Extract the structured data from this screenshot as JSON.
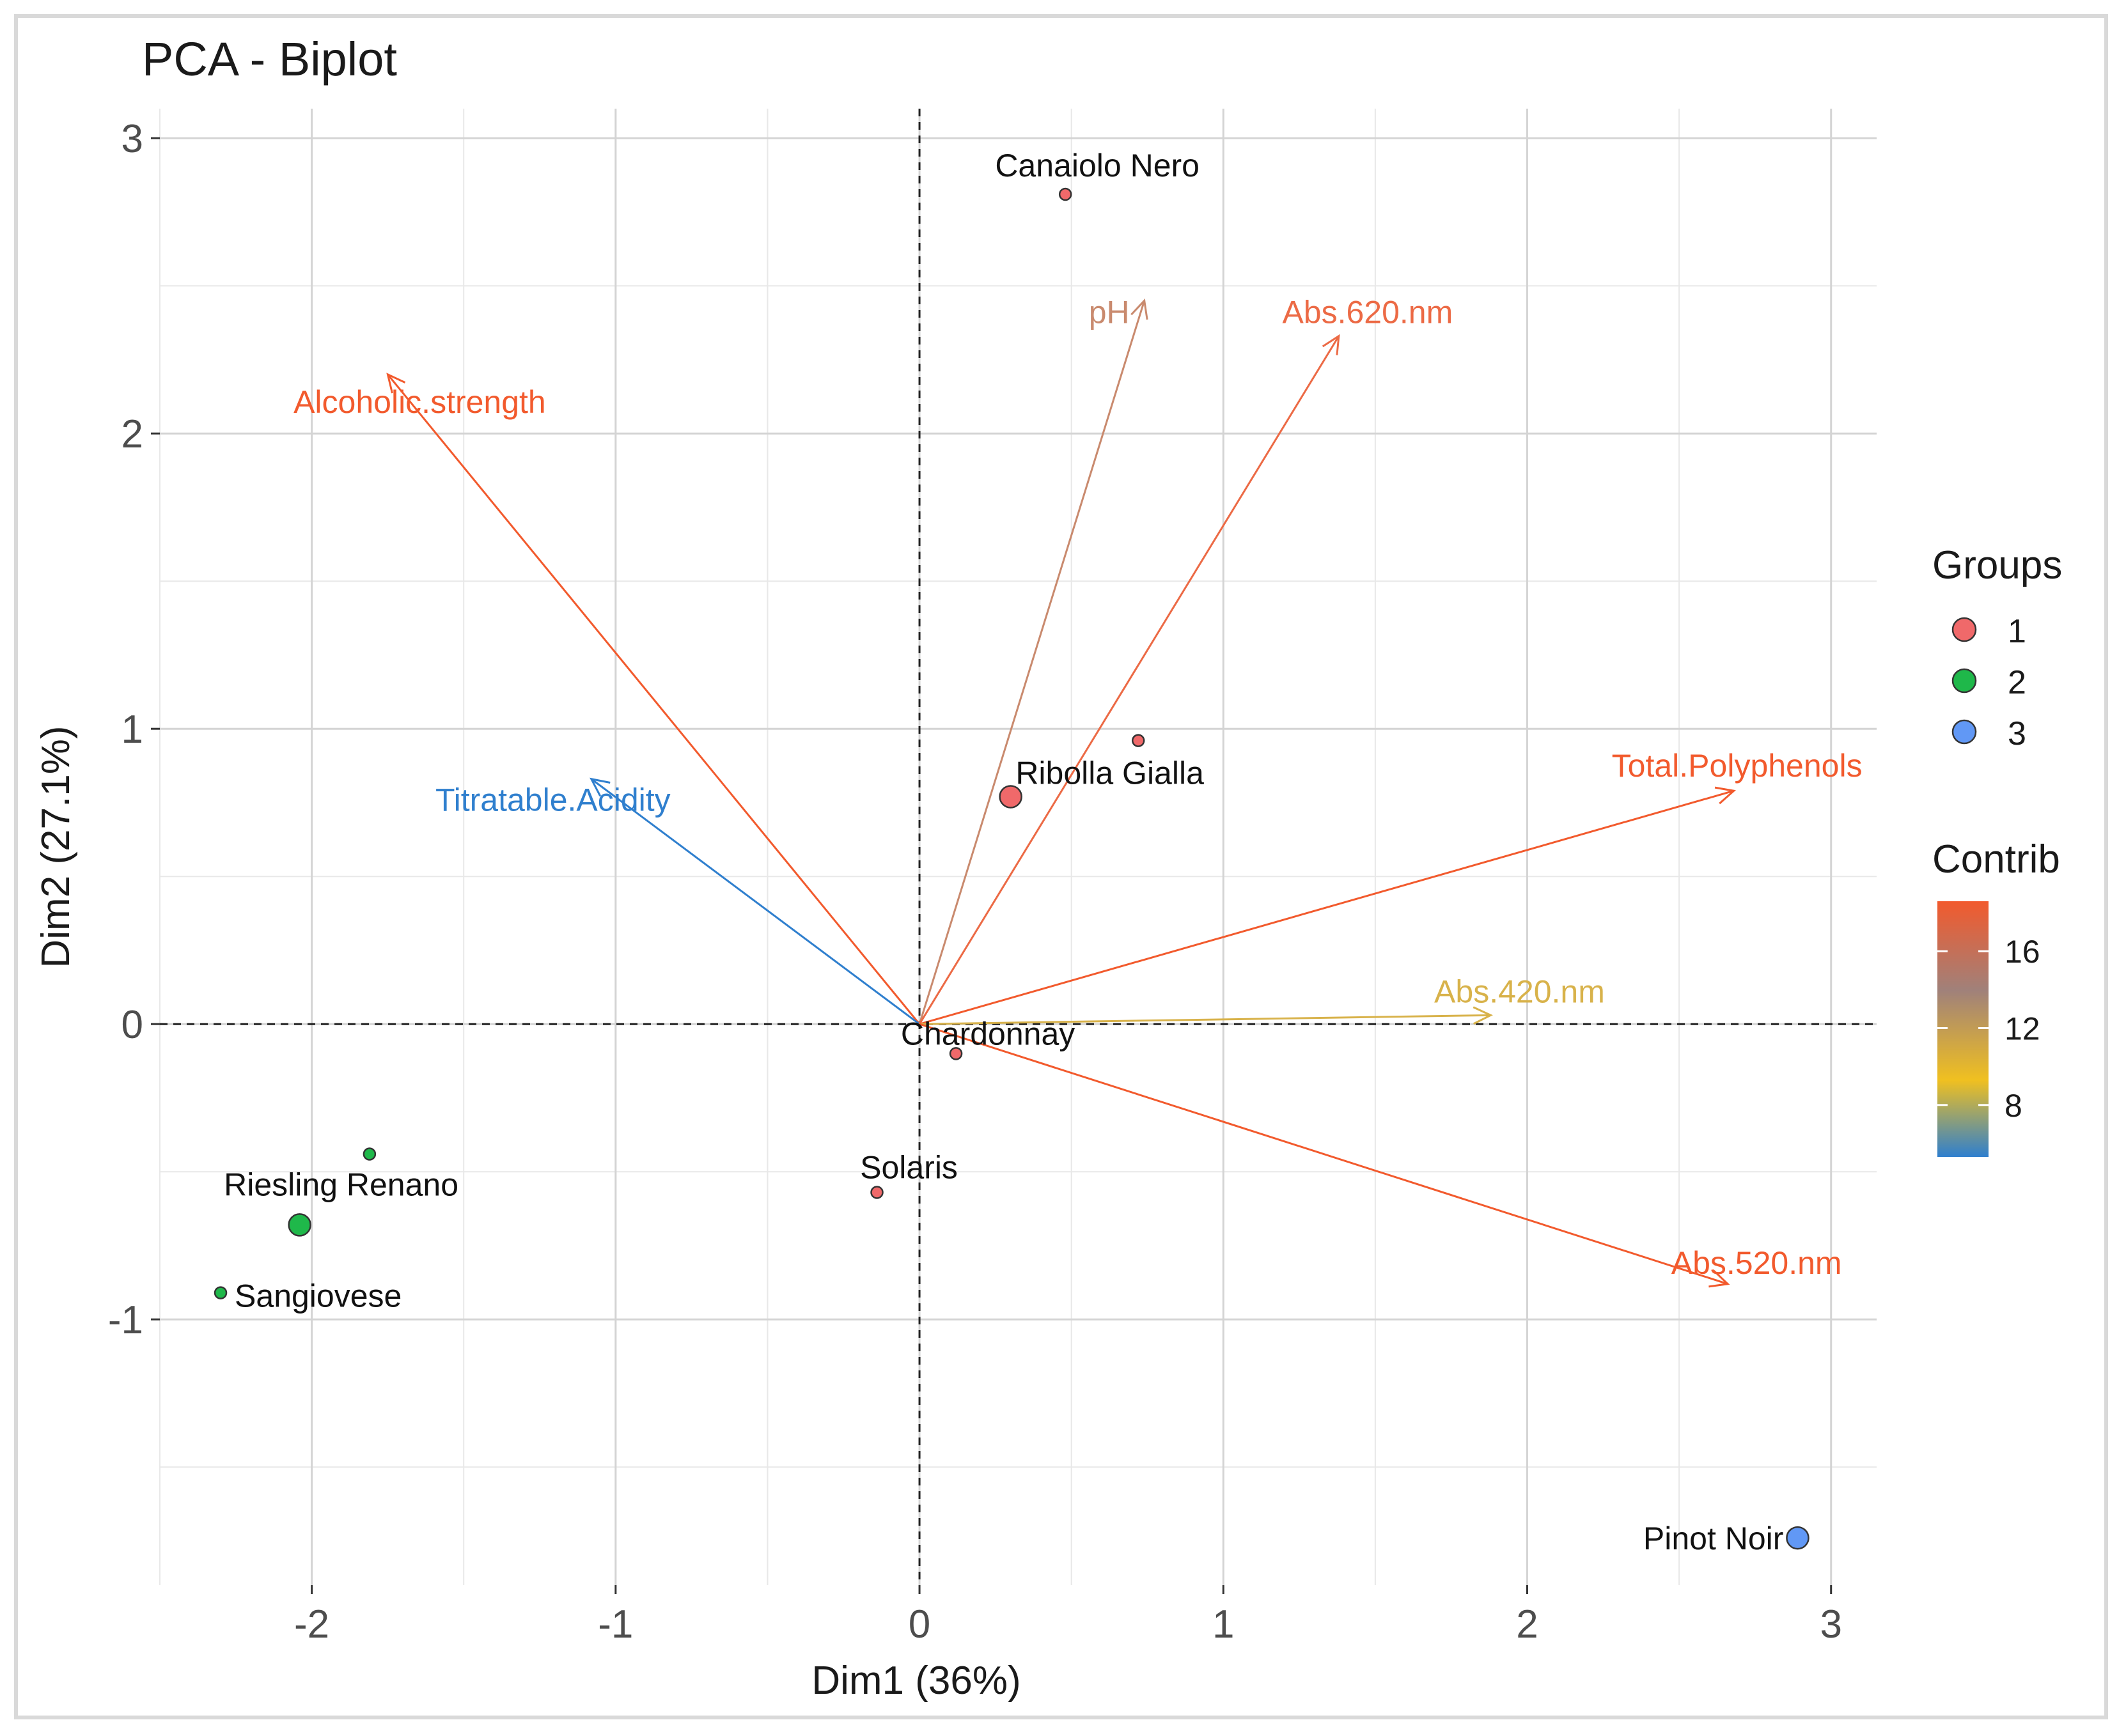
{
  "chart_data": {
    "type": "scatter",
    "title": "PCA - Biplot",
    "xlabel": "Dim1 (36%)",
    "ylabel": "Dim2 (27.1%)",
    "xlim": [
      -2.5,
      3.15
    ],
    "ylim": [
      -1.9,
      3.1
    ],
    "xticks": [
      -2,
      -1,
      0,
      1,
      2,
      3
    ],
    "yticks": [
      -1,
      0,
      1,
      2,
      3
    ],
    "grid": true,
    "points": [
      {
        "label": "Canaiolo Nero",
        "x": 0.48,
        "y": 2.81,
        "group": "1",
        "size": 9
      },
      {
        "label": "",
        "x": 0.72,
        "y": 0.96,
        "group": "1",
        "size": 9
      },
      {
        "label": "Ribolla Gialla",
        "x": 0.3,
        "y": 0.77,
        "group": "1",
        "size": 17
      },
      {
        "label": "Chardonnay",
        "x": 0.12,
        "y": -0.1,
        "group": "1",
        "size": 9
      },
      {
        "label": "Solaris",
        "x": -0.14,
        "y": -0.57,
        "group": "1",
        "size": 9
      },
      {
        "label": "",
        "x": -1.81,
        "y": -0.44,
        "group": "2",
        "size": 9
      },
      {
        "label": "Riesling Renano",
        "x": -2.04,
        "y": -0.68,
        "group": "2",
        "size": 17
      },
      {
        "label": "Sangiovese",
        "x": -2.3,
        "y": -0.91,
        "group": "2",
        "size": 9
      },
      {
        "label": "Pinot Noir",
        "x": 2.89,
        "y": -1.74,
        "group": "3",
        "size": 17
      }
    ],
    "variables": [
      {
        "name": "Alcoholic.strength",
        "x": -1.75,
        "y": 2.2,
        "contrib": 18,
        "color": "#f25a2d"
      },
      {
        "name": "Titratable.Acidity",
        "x": -1.08,
        "y": 0.83,
        "contrib": 5,
        "color": "#2f7fce"
      },
      {
        "name": "pH",
        "x": 0.74,
        "y": 2.45,
        "contrib": 14,
        "color": "#c98a6e"
      },
      {
        "name": "Abs.620.nm",
        "x": 1.38,
        "y": 2.33,
        "contrib": 16,
        "color": "#ec6a45"
      },
      {
        "name": "Total.Polyphenols",
        "x": 2.68,
        "y": 0.79,
        "contrib": 18,
        "color": "#f25a2d"
      },
      {
        "name": "Abs.420.nm",
        "x": 1.88,
        "y": 0.03,
        "contrib": 9,
        "color": "#d8b24a"
      },
      {
        "name": "Abs.520.nm",
        "x": 2.66,
        "y": -0.88,
        "contrib": 18,
        "color": "#f25a2d"
      }
    ],
    "legend_groups": {
      "title": "Groups",
      "placement": "right",
      "items": [
        {
          "label": "1",
          "color": "#f0696a"
        },
        {
          "label": "2",
          "color": "#1fb84a"
        },
        {
          "label": "3",
          "color": "#6198f5"
        }
      ]
    },
    "legend_contrib": {
      "title": "Contrib",
      "placement": "right",
      "ticks": [
        "16",
        "12",
        "8"
      ],
      "tick_values": [
        16,
        12,
        8
      ],
      "range": [
        5.3,
        18.6
      ],
      "gradient": [
        "#f25a2d",
        "#a0817a",
        "#f0c020",
        "#2f7fce"
      ]
    }
  }
}
